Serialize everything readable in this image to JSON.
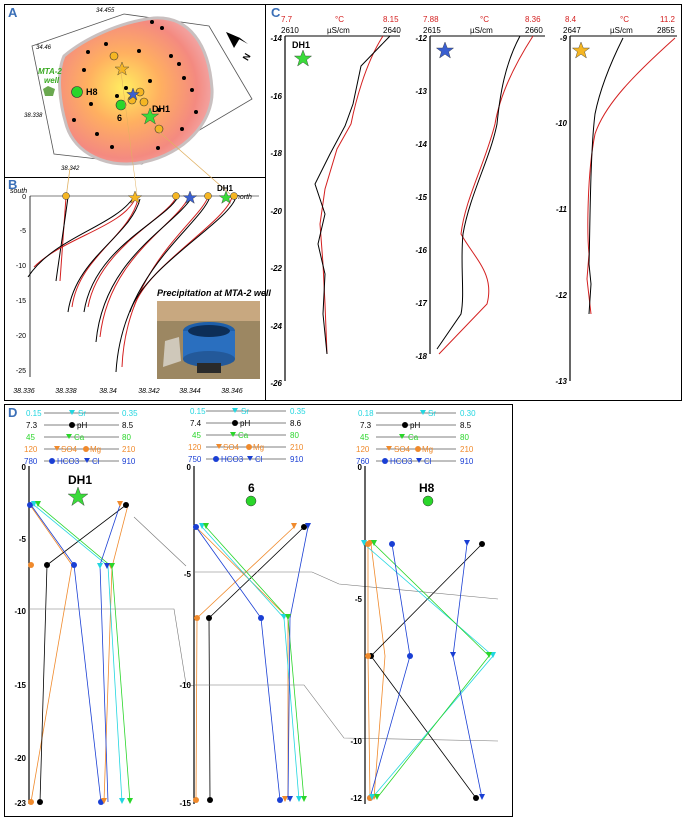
{
  "panels": {
    "A": "A",
    "B": "B",
    "C": "C",
    "D": "D"
  },
  "map": {
    "coords": [
      "34.455",
      "34.46",
      "38.338",
      "38.342"
    ],
    "well_label_1": "MTA-2",
    "well_label_2": "well",
    "site_labels": [
      "H8",
      "6",
      "DH1"
    ],
    "north_label": "N"
  },
  "sectionB": {
    "south": "south",
    "north": "north",
    "dh1": "DH1",
    "y_ticks": [
      "0",
      "-5",
      "-10",
      "-15",
      "-20",
      "-25"
    ],
    "x_ticks": [
      "38.336",
      "38.338",
      "38.34",
      "38.342",
      "38.344",
      "38.346"
    ],
    "photo_caption": "Precipitation at MTA-2 well"
  },
  "profilesC": [
    {
      "temp_min": "7.7",
      "temp_unit": "°C",
      "temp_max": "8.15",
      "ec_min": "2610",
      "ec_unit": "µS/cm",
      "ec_max": "2640",
      "label": "DH1",
      "y_ticks": [
        "-14",
        "-16",
        "-18",
        "-20",
        "-22",
        "-24",
        "-26"
      ]
    },
    {
      "temp_min": "7.88",
      "temp_unit": "°C",
      "temp_max": "8.36",
      "ec_min": "2615",
      "ec_unit": "µS/cm",
      "ec_max": "2660",
      "label": "",
      "y_ticks": [
        "-12",
        "-13",
        "-14",
        "-15",
        "-16",
        "-17",
        "-18"
      ]
    },
    {
      "temp_min": "8.4",
      "temp_unit": "°C",
      "temp_max": "11.2",
      "ec_min": "2647",
      "ec_unit": "µS/cm",
      "ec_max": "2855",
      "label": "",
      "y_ticks": [
        "-9",
        "-10",
        "-11",
        "-12",
        "-13"
      ]
    }
  ],
  "chemD": [
    {
      "title": "DH1",
      "y_ticks": [
        "0",
        "-5",
        "-10",
        "-15",
        "-20",
        "-23"
      ],
      "scales": {
        "sr": [
          "0.15",
          "0.35"
        ],
        "ph": [
          "7.3",
          "8.5"
        ],
        "ca": [
          "45",
          "80"
        ],
        "so4mg": [
          "120",
          "210"
        ],
        "hco3cl": [
          "780",
          "910"
        ]
      }
    },
    {
      "title": "6",
      "y_ticks": [
        "0",
        "-5",
        "-10",
        "-15"
      ],
      "scales": {
        "sr": [
          "0.15",
          "0.35"
        ],
        "ph": [
          "7.4",
          "8.6"
        ],
        "ca": [
          "45",
          "80"
        ],
        "so4mg": [
          "120",
          "210"
        ],
        "hco3cl": [
          "750",
          "910"
        ]
      }
    },
    {
      "title": "H8",
      "y_ticks": [
        "0",
        "-5",
        "-10",
        "-12"
      ],
      "scales": {
        "sr": [
          "0.18",
          "0.30"
        ],
        "ph": [
          "7.3",
          "8.5"
        ],
        "ca": [
          "45",
          "80"
        ],
        "so4mg": [
          "120",
          "210"
        ],
        "hco3cl": [
          "760",
          "910"
        ]
      }
    }
  ],
  "legendD": {
    "sr": "Sr",
    "ph": "pH",
    "ca": "Ca",
    "so4": "SO4",
    "mg": "Mg",
    "hco3": "HCO3",
    "cl": "Cl"
  },
  "colors": {
    "red": "#d42020",
    "black": "#000000",
    "cyan": "#22d6e0",
    "green": "#2ad62a",
    "orange": "#f08a2c",
    "blue": "#1a3fd4",
    "panel_label": "#3a6fb7"
  }
}
